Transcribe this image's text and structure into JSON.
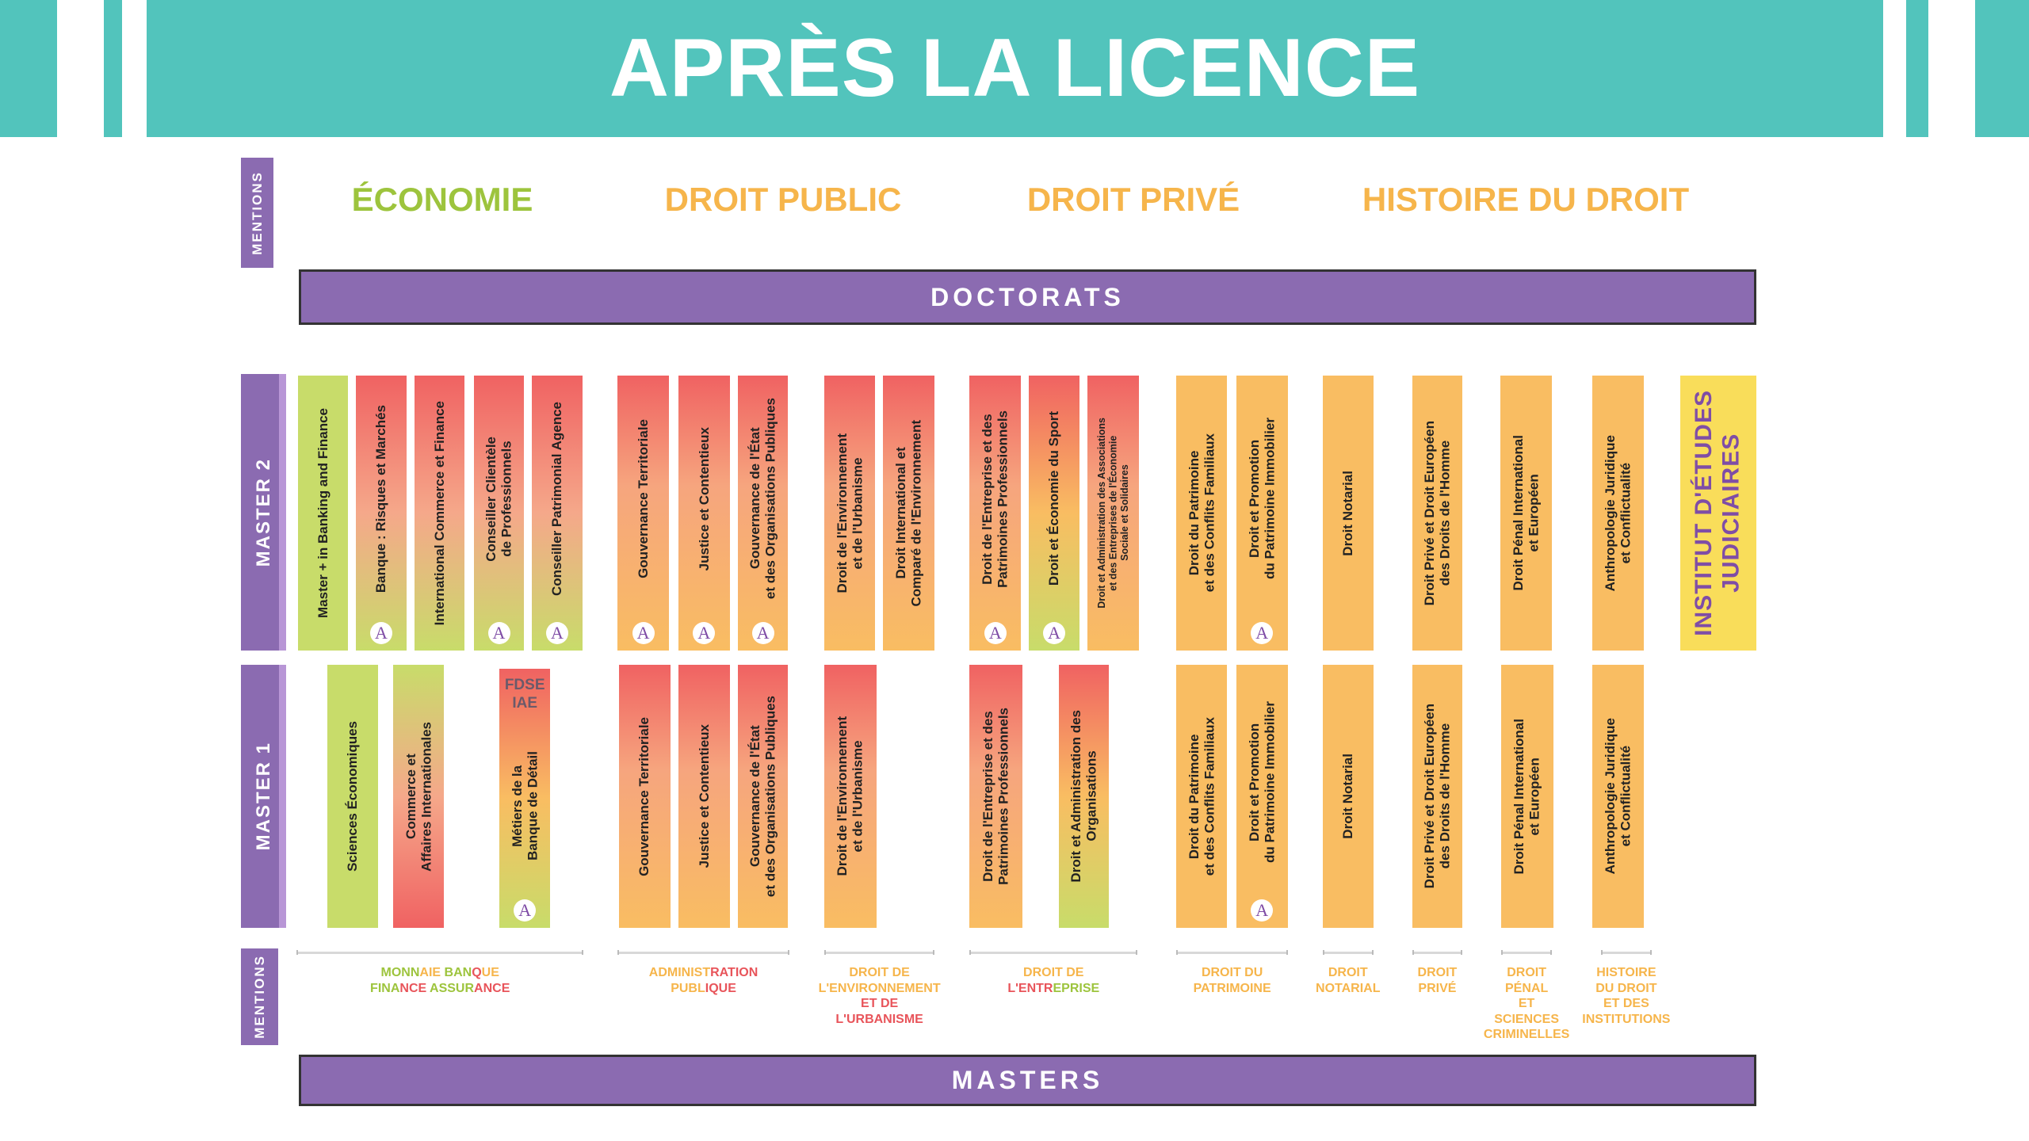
{
  "title": "APRÈS LA LICENCE",
  "colors": {
    "teal": "#52C4BC",
    "purple": "#8B6BB1",
    "green": "#C8DC6A",
    "red": "#F06262",
    "orange": "#F9BD62",
    "yellow": "#F9DD5A",
    "cat_green": "#9DC43D",
    "cat_orange": "#F6B54B",
    "label_red": "#E8545A",
    "label_green": "#9DC43D",
    "label_orange": "#F6B54B"
  },
  "side_labels": {
    "mentions_top": "MENTIONS",
    "master2": "MASTER 2",
    "master1": "MASTER 1",
    "mentions_bottom": "MENTIONS"
  },
  "mentions": [
    {
      "label": "ÉCONOMIE",
      "color": "green"
    },
    {
      "label": "DROIT PUBLIC",
      "color": "orange"
    },
    {
      "label": "DROIT PRIVÉ",
      "color": "orange"
    },
    {
      "label": "HISTOIRE DU DROIT",
      "color": "orange"
    }
  ],
  "doctorats": "DOCTORATS",
  "masters": "MASTERS",
  "badge_letter": "A",
  "master2": [
    {
      "text": "Master + in Banking and Finance",
      "fill": "green",
      "badge": false
    },
    {
      "text": "Banque : Risques et Marchés",
      "fill": "red-green",
      "badge": true
    },
    {
      "text": "International Commerce et Finance",
      "fill": "red-green",
      "badge": false
    },
    {
      "text": "Conseiller Clientèle\nde Professionnels",
      "fill": "red-green",
      "badge": true
    },
    {
      "text": "Conseiller Patrimonial Agence",
      "fill": "red-green",
      "badge": true
    },
    {
      "text": "Gouvernance Territoriale",
      "fill": "red-orange",
      "badge": true
    },
    {
      "text": "Justice et Contentieux",
      "fill": "red-orange",
      "badge": true
    },
    {
      "text": "Gouvernance de l'État\net des Organisations Publiques",
      "fill": "red-orange",
      "badge": true
    },
    {
      "text": "Droit de l'Environnement\net de l'Urbanisme",
      "fill": "red-orange",
      "badge": false
    },
    {
      "text": "Droit International et\nComparé de l'Environnement",
      "fill": "red-orange",
      "badge": false
    },
    {
      "text": "Droit de l'Entreprise et des\nPatrimoines Professionnels",
      "fill": "red-orange",
      "badge": true
    },
    {
      "text": "Droit et  Économie du Sport",
      "fill": "red-orange-green",
      "badge": true
    },
    {
      "text": "Droit et Administration des Associations\net des Entreprises de l'Économie\nSociale et Solidaires",
      "fill": "red-orange",
      "badge": false,
      "small": true
    },
    {
      "text": "Droit du Patrimoine\net des Conflits Familiaux",
      "fill": "orange",
      "badge": false
    },
    {
      "text": "Droit et Promotion\ndu Patrimoine Immobilier",
      "fill": "orange",
      "badge": true
    },
    {
      "text": "Droit Notarial",
      "fill": "orange",
      "badge": false
    },
    {
      "text": "Droit Privé et Droit Européen\ndes Droits de l'Homme",
      "fill": "orange",
      "badge": false
    },
    {
      "text": "Droit Pénal International\net  Européen",
      "fill": "orange",
      "badge": false
    },
    {
      "text": "Anthropologie Juridique\net Conflictualité",
      "fill": "orange",
      "badge": false
    },
    {
      "text": "INSTITUT  D'ÉTUDES\nJUDICIAIRES",
      "fill": "yellow",
      "badge": false,
      "big": true
    }
  ],
  "master1": [
    {
      "text": "Sciences Économiques",
      "fill": "green",
      "badge": false
    },
    {
      "text": "Commerce et\nAffaires Internationales",
      "fill": "green-red",
      "badge": false
    },
    {
      "text": "Métiers de la\nBanque de Détail",
      "fill": "red-orange-green",
      "badge": true,
      "tag": "FDSE\nIAE"
    },
    {
      "text": "Gouvernance Territoriale",
      "fill": "red-orange",
      "badge": false
    },
    {
      "text": "Justice et Contentieux",
      "fill": "red-orange",
      "badge": false
    },
    {
      "text": "Gouvernance de l'État\net des Organisations Publiques",
      "fill": "red-orange",
      "badge": false
    },
    {
      "text": "Droit de l'Environnement\net de l'Urbanisme",
      "fill": "red-orange",
      "badge": false
    },
    {
      "text": "Droit de l'Entreprise et des\nPatrimoines Professionnels",
      "fill": "red-orange",
      "badge": false
    },
    {
      "text": "Droit et Administration des\nOrganisations",
      "fill": "red-orange-green",
      "badge": false
    },
    {
      "text": "Droit du Patrimoine\net des Conflits Familiaux",
      "fill": "orange",
      "badge": false
    },
    {
      "text": "Droit et Promotion\ndu Patrimoine Immobilier",
      "fill": "orange",
      "badge": true
    },
    {
      "text": "Droit Notarial",
      "fill": "orange",
      "badge": false
    },
    {
      "text": "Droit Privé et Droit Européen\ndes Droits de l'Homme",
      "fill": "orange",
      "badge": false
    },
    {
      "text": "Droit Pénal International\net  Européen",
      "fill": "orange",
      "badge": false
    },
    {
      "text": "Anthropologie Juridique\net Conflictualité",
      "fill": "orange",
      "badge": false
    }
  ],
  "mention_labels": [
    {
      "lines": [
        [
          [
            "MONN",
            "g"
          ],
          [
            "AIE ",
            "o"
          ],
          [
            "BAN",
            "g"
          ],
          [
            "Q",
            "r"
          ],
          [
            "UE",
            "o"
          ]
        ],
        [
          [
            "FINA",
            "g"
          ],
          [
            "NCE ",
            "r"
          ],
          [
            "ASSUR",
            "g"
          ],
          [
            "ANCE",
            "r"
          ]
        ]
      ]
    },
    {
      "lines": [
        [
          [
            "ADMINIST",
            "o"
          ],
          [
            "RATION",
            "r"
          ]
        ],
        [
          [
            "PUBL",
            "o"
          ],
          [
            "IQUE",
            "r"
          ]
        ]
      ]
    },
    {
      "lines": [
        [
          [
            "DROIT DE",
            "o"
          ]
        ],
        [
          [
            "L'ENVIRONNEMENT",
            "o"
          ]
        ],
        [
          [
            "ET DE",
            "r"
          ]
        ],
        [
          [
            "L'URBANISME",
            "r"
          ]
        ]
      ]
    },
    {
      "lines": [
        [
          [
            "DROIT DE",
            "o"
          ]
        ],
        [
          [
            "L'ENTR",
            "r"
          ],
          [
            "EPRISE",
            "g"
          ]
        ]
      ]
    },
    {
      "lines": [
        [
          [
            "DROIT DU",
            "o"
          ]
        ],
        [
          [
            "PATRIMOINE",
            "o"
          ]
        ]
      ]
    },
    {
      "lines": [
        [
          [
            "DROIT",
            "o"
          ]
        ],
        [
          [
            "NOTARIAL",
            "o"
          ]
        ]
      ]
    },
    {
      "lines": [
        [
          [
            "DROIT",
            "o"
          ]
        ],
        [
          [
            "PRIVÉ",
            "o"
          ]
        ]
      ]
    },
    {
      "lines": [
        [
          [
            "DROIT",
            "o"
          ]
        ],
        [
          [
            "PÉNAL",
            "o"
          ]
        ],
        [
          [
            "ET",
            "o"
          ]
        ],
        [
          [
            "SCIENCES",
            "o"
          ]
        ],
        [
          [
            "CRIMINELLES",
            "o"
          ]
        ]
      ]
    },
    {
      "lines": [
        [
          [
            "HISTOIRE",
            "o"
          ]
        ],
        [
          [
            "DU DROIT",
            "o"
          ]
        ],
        [
          [
            "ET DES",
            "o"
          ]
        ],
        [
          [
            "INSTITUTIONS",
            "o"
          ]
        ]
      ]
    }
  ]
}
